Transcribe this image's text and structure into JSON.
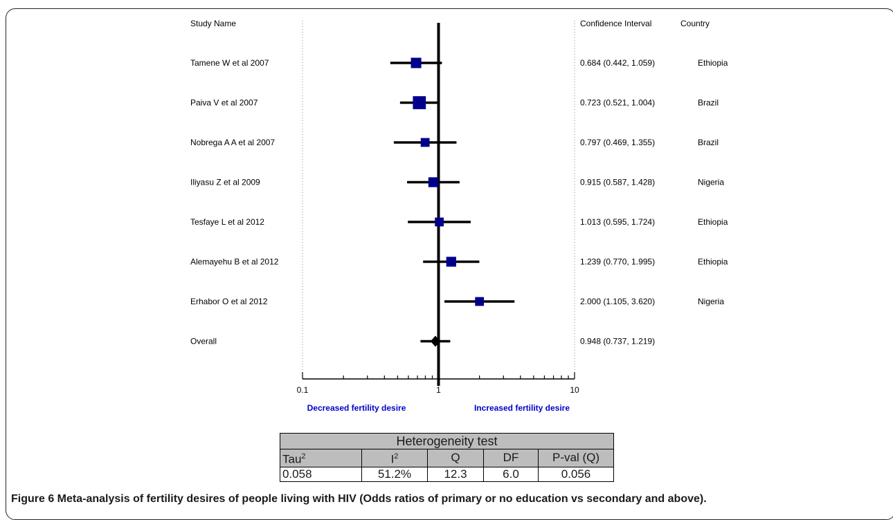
{
  "chart_data": {
    "type": "forest",
    "headers": {
      "study": "Study Name",
      "ci": "Confidence Interval",
      "country": "Country"
    },
    "x_scale": "log",
    "xlim": [
      0.1,
      10
    ],
    "x_ticks": [
      "0.1",
      "1",
      "10"
    ],
    "x_labels": {
      "left": "Decreased fertility desire",
      "right": "Increased fertility desire"
    },
    "studies": [
      {
        "name": "Tamene W et al 2007",
        "or": 0.684,
        "lo": 0.442,
        "hi": 1.059,
        "ci_text": "0.684 (0.442, 1.059)",
        "country": "Ethiopia",
        "weight": 1.0
      },
      {
        "name": "Paiva V et al 2007",
        "or": 0.723,
        "lo": 0.521,
        "hi": 1.004,
        "ci_text": "0.723 (0.521, 1.004)",
        "country": "Brazil",
        "weight": 1.25
      },
      {
        "name": "Nobrega A A et al 2007",
        "or": 0.797,
        "lo": 0.469,
        "hi": 1.355,
        "ci_text": "0.797 (0.469, 1.355)",
        "country": "Brazil",
        "weight": 0.85
      },
      {
        "name": "Iliyasu Z et al 2009",
        "or": 0.915,
        "lo": 0.587,
        "hi": 1.428,
        "ci_text": "0.915 (0.587, 1.428)",
        "country": "Nigeria",
        "weight": 0.95
      },
      {
        "name": "Tesfaye L et al 2012",
        "or": 1.013,
        "lo": 0.595,
        "hi": 1.724,
        "ci_text": "1.013 (0.595, 1.724)",
        "country": "Ethiopia",
        "weight": 0.85
      },
      {
        "name": "Alemayehu B et al 2012",
        "or": 1.239,
        "lo": 0.77,
        "hi": 1.995,
        "ci_text": "1.239 (0.770, 1.995)",
        "country": "Ethiopia",
        "weight": 0.95
      },
      {
        "name": "Erhabor O et al 2012",
        "or": 2.0,
        "lo": 1.105,
        "hi": 3.62,
        "ci_text": "2.000 (1.105, 3.620)",
        "country": "Nigeria",
        "weight": 0.85
      }
    ],
    "overall": {
      "name": "Overall",
      "or": 0.948,
      "lo": 0.737,
      "hi": 1.219,
      "ci_text": "0.948 (0.737, 1.219)"
    },
    "colors": {
      "marker": "#00008b",
      "axis": "#000000",
      "label_blue": "#0000cc",
      "dotted": "#888888"
    }
  },
  "heterogeneity": {
    "title": "Heterogeneity test",
    "headers": {
      "tau": "Tau",
      "i": "I",
      "q": "Q",
      "df": "DF",
      "pval": "P-val (Q)",
      "sup": "2"
    },
    "values": {
      "tau": "0.058",
      "i": "51.2%",
      "q": "12.3",
      "df": "6.0",
      "pval": "0.056"
    }
  },
  "caption": {
    "label": "Figure 6",
    "text": " Meta-analysis of fertility desires of people living with HIV (Odds ratios of primary or no education vs secondary and above)."
  }
}
